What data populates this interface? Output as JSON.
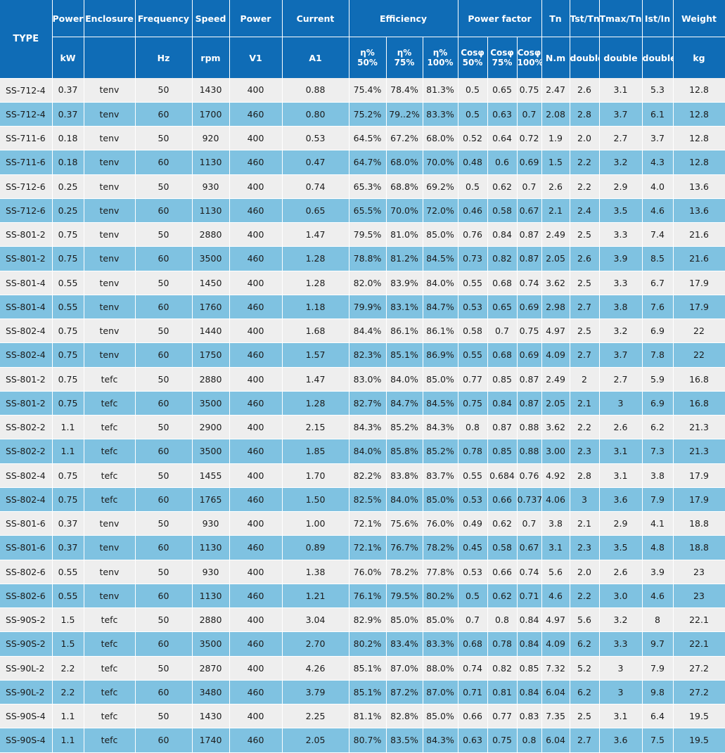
{
  "header": {
    "type": "TYPE",
    "group": [
      "Power",
      "Enclosure",
      "Frequency",
      "Speed",
      "Power",
      "Current",
      "Efficiency",
      "Power factor",
      "Tn",
      "Tst/Tn",
      "Tmax/Tn",
      "Ist/In",
      "Weight"
    ],
    "units": {
      "power_kw": "kW",
      "enclosure": "",
      "frequency": "Hz",
      "speed": "rpm",
      "voltage": "V1",
      "current": "A1",
      "eff": [
        [
          "η%",
          "50%"
        ],
        [
          "η%",
          "75%"
        ],
        [
          "η%",
          "100%"
        ]
      ],
      "cos": [
        [
          "Cosφ",
          "50%"
        ],
        [
          "Cosφ",
          "75%"
        ],
        [
          "Cosφ",
          "100%"
        ]
      ],
      "tn": "N.m",
      "tst": "double",
      "tmax": "double",
      "ist": "double",
      "weight": "kg"
    }
  },
  "rows": [
    [
      "SS-712-4",
      "0.37",
      "tenv",
      "50",
      "1430",
      "400",
      "0.88",
      "75.4%",
      "78.4%",
      "81.3%",
      "0.5",
      "0.65",
      "0.75",
      "2.47",
      "2.6",
      "3.1",
      "5.3",
      "12.8"
    ],
    [
      "SS-712-4",
      "0.37",
      "tenv",
      "60",
      "1700",
      "460",
      "0.80",
      "75.2%",
      "79..2%",
      "83.3%",
      "0.5",
      "0.63",
      "0.7",
      "2.08",
      "2.8",
      "3.7",
      "6.1",
      "12.8"
    ],
    [
      "SS-711-6",
      "0.18",
      "tenv",
      "50",
      "920",
      "400",
      "0.53",
      "64.5%",
      "67.2%",
      "68.0%",
      "0.52",
      "0.64",
      "0.72",
      "1.9",
      "2.0",
      "2.7",
      "3.7",
      "12.8"
    ],
    [
      "SS-711-6",
      "0.18",
      "tenv",
      "60",
      "1130",
      "460",
      "0.47",
      "64.7%",
      "68.0%",
      "70.0%",
      "0.48",
      "0.6",
      "0.69",
      "1.5",
      "2.2",
      "3.2",
      "4.3",
      "12.8"
    ],
    [
      "SS-712-6",
      "0.25",
      "tenv",
      "50",
      "930",
      "400",
      "0.74",
      "65.3%",
      "68.8%",
      "69.2%",
      "0.5",
      "0.62",
      "0.7",
      "2.6",
      "2.2",
      "2.9",
      "4.0",
      "13.6"
    ],
    [
      "SS-712-6",
      "0.25",
      "tenv",
      "60",
      "1130",
      "460",
      "0.65",
      "65.5%",
      "70.0%",
      "72.0%",
      "0.46",
      "0.58",
      "0.67",
      "2.1",
      "2.4",
      "3.5",
      "4.6",
      "13.6"
    ],
    [
      "SS-801-2",
      "0.75",
      "tenv",
      "50",
      "2880",
      "400",
      "1.47",
      "79.5%",
      "81.0%",
      "85.0%",
      "0.76",
      "0.84",
      "0.87",
      "2.49",
      "2.5",
      "3.3",
      "7.4",
      "21.6"
    ],
    [
      "SS-801-2",
      "0.75",
      "tenv",
      "60",
      "3500",
      "460",
      "1.28",
      "78.8%",
      "81.2%",
      "84.5%",
      "0.73",
      "0.82",
      "0.87",
      "2.05",
      "2.6",
      "3.9",
      "8.5",
      "21.6"
    ],
    [
      "SS-801-4",
      "0.55",
      "tenv",
      "50",
      "1450",
      "400",
      "1.28",
      "82.0%",
      "83.9%",
      "84.0%",
      "0.55",
      "0.68",
      "0.74",
      "3.62",
      "2.5",
      "3.3",
      "6.7",
      "17.9"
    ],
    [
      "SS-801-4",
      "0.55",
      "tenv",
      "60",
      "1760",
      "460",
      "1.18",
      "79.9%",
      "83.1%",
      "84.7%",
      "0.53",
      "0.65",
      "0.69",
      "2.98",
      "2.7",
      "3.8",
      "7.6",
      "17.9"
    ],
    [
      "SS-802-4",
      "0.75",
      "tenv",
      "50",
      "1440",
      "400",
      "1.68",
      "84.4%",
      "86.1%",
      "86.1%",
      "0.58",
      "0.7",
      "0.75",
      "4.97",
      "2.5",
      "3.2",
      "6.9",
      "22"
    ],
    [
      "SS-802-4",
      "0.75",
      "tenv",
      "60",
      "1750",
      "460",
      "1.57",
      "82.3%",
      "85.1%",
      "86.9%",
      "0.55",
      "0.68",
      "0.69",
      "4.09",
      "2.7",
      "3.7",
      "7.8",
      "22"
    ],
    [
      "SS-801-2",
      "0.75",
      "tefc",
      "50",
      "2880",
      "400",
      "1.47",
      "83.0%",
      "84.0%",
      "85.0%",
      "0.77",
      "0.85",
      "0.87",
      "2.49",
      "2",
      "2.7",
      "5.9",
      "16.8"
    ],
    [
      "SS-801-2",
      "0.75",
      "tefc",
      "60",
      "3500",
      "460",
      "1.28",
      "82.7%",
      "84.7%",
      "84.5%",
      "0.75",
      "0.84",
      "0.87",
      "2.05",
      "2.1",
      "3",
      "6.9",
      "16.8"
    ],
    [
      "SS-802-2",
      "1.1",
      "tefc",
      "50",
      "2900",
      "400",
      "2.15",
      "84.3%",
      "85.2%",
      "84.3%",
      "0.8",
      "0.87",
      "0.88",
      "3.62",
      "2.2",
      "2.6",
      "6.2",
      "21.3"
    ],
    [
      "SS-802-2",
      "1.1",
      "tefc",
      "60",
      "3500",
      "460",
      "1.85",
      "84.0%",
      "85.8%",
      "85.2%",
      "0.78",
      "0.85",
      "0.88",
      "3.00",
      "2.3",
      "3.1",
      "7.3",
      "21.3"
    ],
    [
      "SS-802-4",
      "0.75",
      "tefc",
      "50",
      "1455",
      "400",
      "1.70",
      "82.2%",
      "83.8%",
      "83.7%",
      "0.55",
      "0.684",
      "0.76",
      "4.92",
      "2.8",
      "3.1",
      "3.8",
      "17.9"
    ],
    [
      "SS-802-4",
      "0.75",
      "tefc",
      "60",
      "1765",
      "460",
      "1.50",
      "82.5%",
      "84.0%",
      "85.0%",
      "0.53",
      "0.66",
      "0.737",
      "4.06",
      "3",
      "3.6",
      "7.9",
      "17.9"
    ],
    [
      "SS-801-6",
      "0.37",
      "tenv",
      "50",
      "930",
      "400",
      "1.00",
      "72.1%",
      "75.6%",
      "76.0%",
      "0.49",
      "0.62",
      "0.7",
      "3.8",
      "2.1",
      "2.9",
      "4.1",
      "18.8"
    ],
    [
      "SS-801-6",
      "0.37",
      "tenv",
      "60",
      "1130",
      "460",
      "0.89",
      "72.1%",
      "76.7%",
      "78.2%",
      "0.45",
      "0.58",
      "0.67",
      "3.1",
      "2.3",
      "3.5",
      "4.8",
      "18.8"
    ],
    [
      "SS-802-6",
      "0.55",
      "tenv",
      "50",
      "930",
      "400",
      "1.38",
      "76.0%",
      "78.2%",
      "77.8%",
      "0.53",
      "0.66",
      "0.74",
      "5.6",
      "2.0",
      "2.6",
      "3.9",
      "23"
    ],
    [
      "SS-802-6",
      "0.55",
      "tenv",
      "60",
      "1130",
      "460",
      "1.21",
      "76.1%",
      "79.5%",
      "80.2%",
      "0.5",
      "0.62",
      "0.71",
      "4.6",
      "2.2",
      "3.0",
      "4.6",
      "23"
    ],
    [
      "SS-90S-2",
      "1.5",
      "tefc",
      "50",
      "2880",
      "400",
      "3.04",
      "82.9%",
      "85.0%",
      "85.0%",
      "0.7",
      "0.8",
      "0.84",
      "4.97",
      "5.6",
      "3.2",
      "8",
      "22.1"
    ],
    [
      "SS-90S-2",
      "1.5",
      "tefc",
      "60",
      "3500",
      "460",
      "2.70",
      "80.2%",
      "83.4%",
      "83.3%",
      "0.68",
      "0.78",
      "0.84",
      "4.09",
      "6.2",
      "3.3",
      "9.7",
      "22.1"
    ],
    [
      "SS-90L-2",
      "2.2",
      "tefc",
      "50",
      "2870",
      "400",
      "4.26",
      "85.1%",
      "87.0%",
      "88.0%",
      "0.74",
      "0.82",
      "0.85",
      "7.32",
      "5.2",
      "3",
      "7.9",
      "27.2"
    ],
    [
      "SS-90L-2",
      "2.2",
      "tefc",
      "60",
      "3480",
      "460",
      "3.79",
      "85.1%",
      "87.2%",
      "87.0%",
      "0.71",
      "0.81",
      "0.84",
      "6.04",
      "6.2",
      "3",
      "9.8",
      "27.2"
    ],
    [
      "SS-90S-4",
      "1.1",
      "tefc",
      "50",
      "1430",
      "400",
      "2.25",
      "81.1%",
      "82.8%",
      "85.0%",
      "0.66",
      "0.77",
      "0.83",
      "7.35",
      "2.5",
      "3.1",
      "6.4",
      "19.5"
    ],
    [
      "SS-90S-4",
      "1.1",
      "tefc",
      "60",
      "1740",
      "460",
      "2.05",
      "80.7%",
      "83.5%",
      "84.3%",
      "0.63",
      "0.75",
      "0.8",
      "6.04",
      "2.7",
      "3.6",
      "7.5",
      "19.5"
    ]
  ]
}
